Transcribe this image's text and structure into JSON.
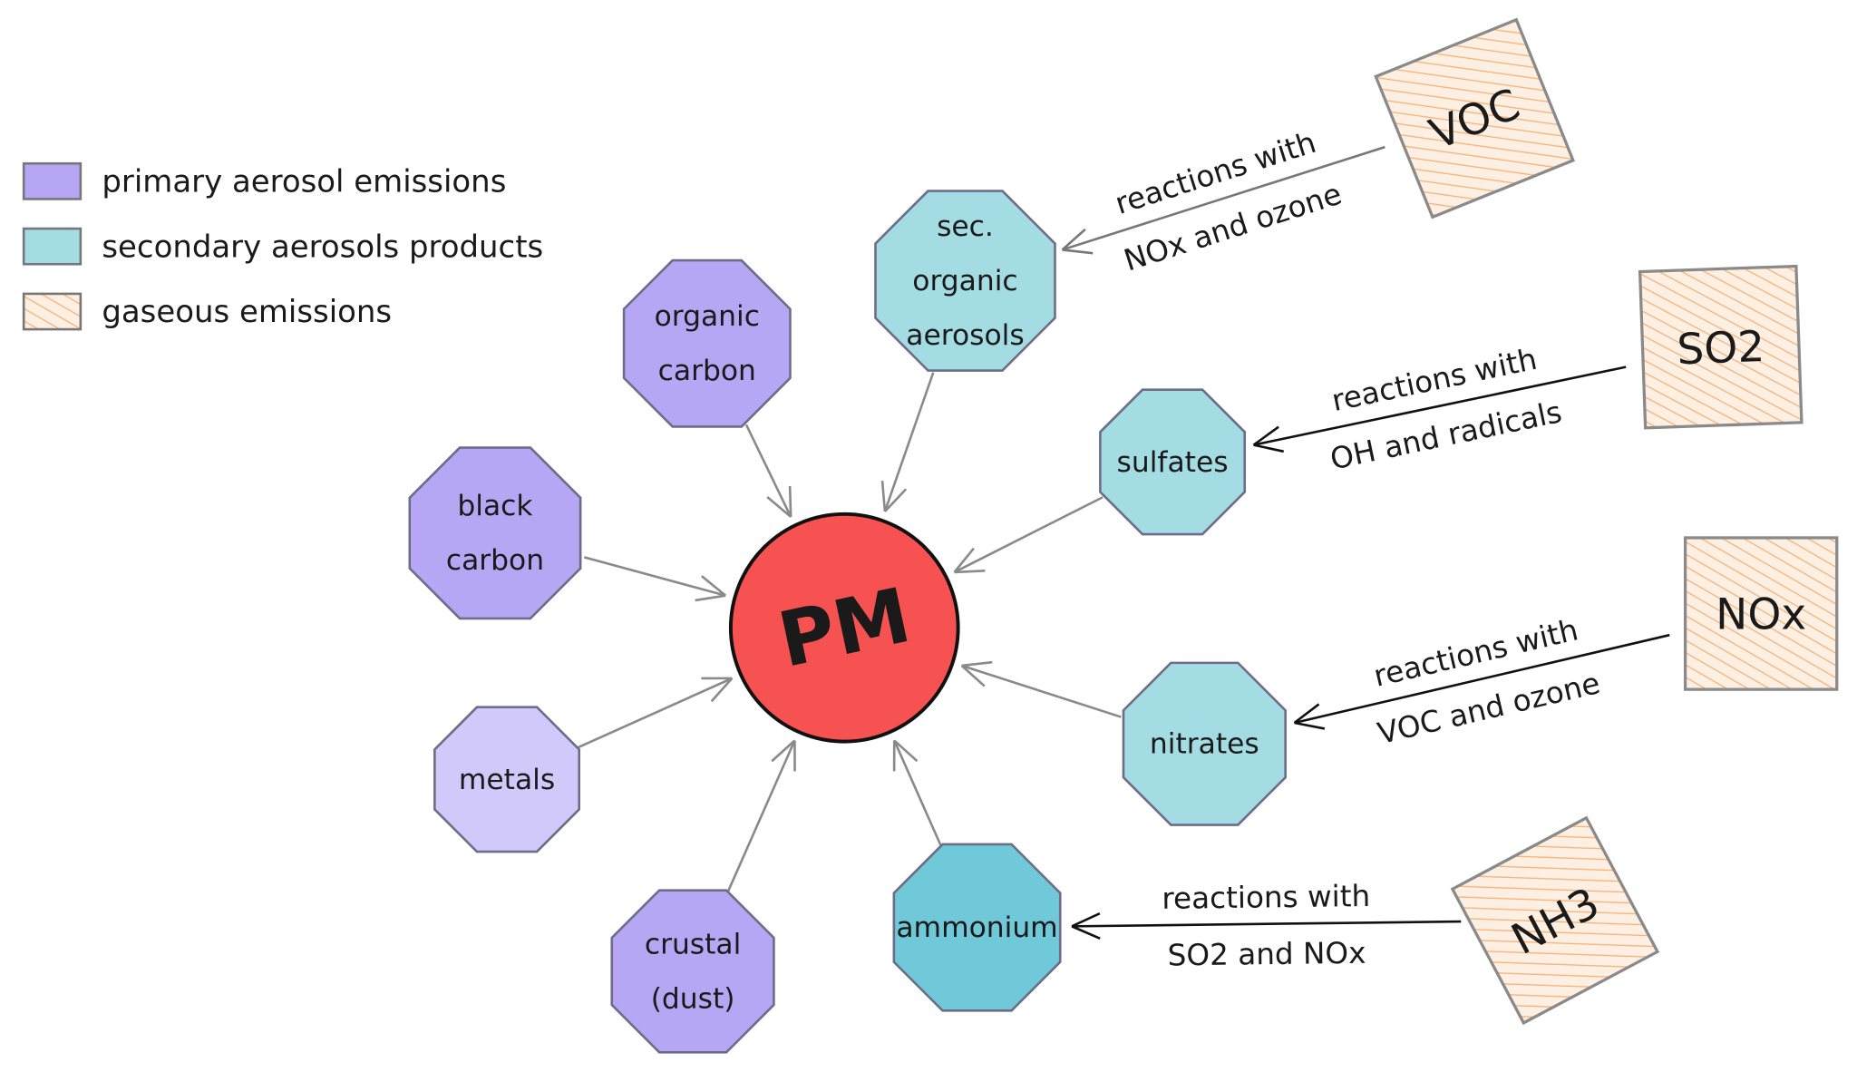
{
  "colors": {
    "primary": "#b6a7f5",
    "primary_light": "#d2c9fb",
    "secondary": "#a3dde3",
    "secondary_dark": "#6fc9d8",
    "gaseous": "#fbd6b4",
    "gaseous_hatch": "#f5a95f",
    "pm": "#f75252"
  },
  "legend": [
    {
      "label": "primary aerosol emissions",
      "type": "primary"
    },
    {
      "label": "secondary aerosols products",
      "type": "secondary"
    },
    {
      "label": "gaseous emissions",
      "type": "gaseous"
    }
  ],
  "center": {
    "label": "PM"
  },
  "primary_nodes": [
    {
      "id": "organic-carbon",
      "lines": [
        "organic",
        "carbon"
      ]
    },
    {
      "id": "black-carbon",
      "lines": [
        "black",
        "carbon"
      ]
    },
    {
      "id": "metals",
      "lines": [
        "metals"
      ]
    },
    {
      "id": "crustal-dust",
      "lines": [
        "crustal",
        "(dust)"
      ]
    }
  ],
  "secondary_nodes": [
    {
      "id": "sec-organic-aerosols",
      "lines": [
        "sec.",
        "organic",
        "aerosols"
      ]
    },
    {
      "id": "sulfates",
      "lines": [
        "sulfates"
      ]
    },
    {
      "id": "nitrates",
      "lines": [
        "nitrates"
      ]
    },
    {
      "id": "ammonium",
      "lines": [
        "ammonium"
      ]
    }
  ],
  "gaseous_nodes": [
    {
      "id": "voc",
      "label": "VOC",
      "reaction": [
        "reactions with",
        "NOx and ozone"
      ],
      "target": "sec-organic-aerosols"
    },
    {
      "id": "so2",
      "label": "SO2",
      "reaction": [
        "reactions with",
        "OH and radicals"
      ],
      "target": "sulfates"
    },
    {
      "id": "nox",
      "label": "NOx",
      "reaction": [
        "reactions with",
        "VOC and ozone"
      ],
      "target": "nitrates"
    },
    {
      "id": "nh3",
      "label": "NH3",
      "reaction": [
        "reactions with",
        "SO2 and NOx"
      ],
      "target": "ammonium"
    }
  ]
}
